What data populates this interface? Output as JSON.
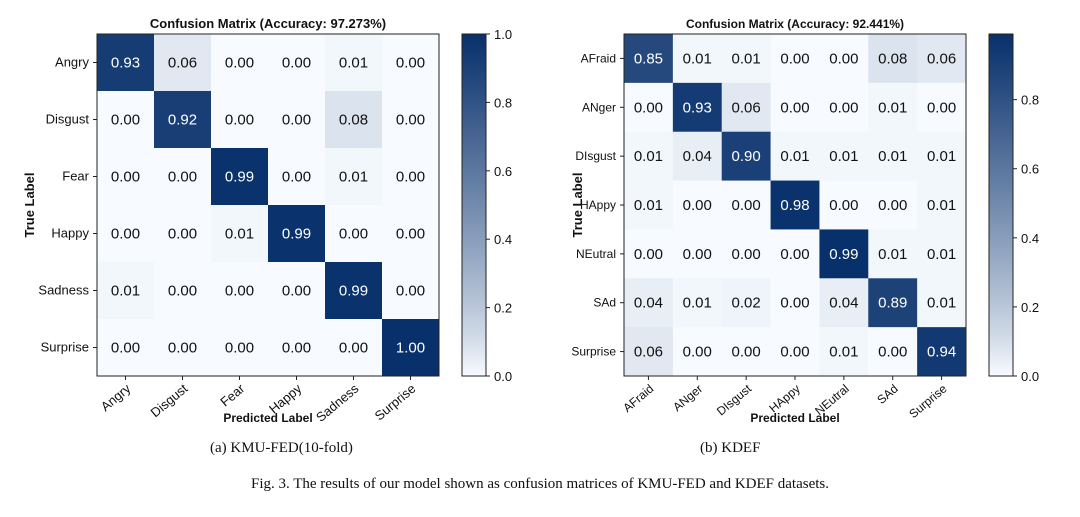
{
  "figure_caption": "Fig. 3.  The results of our model shown as confusion matrices of KMU-FED and KDEF datasets.",
  "chart_data": [
    {
      "type": "heatmap",
      "title": "Confusion Matrix (Accuracy: 97.273%)",
      "subcaption": "(a)  KMU-FED(10-fold)",
      "xlabel": "Predicted Label",
      "ylabel": "True Label",
      "row_labels": [
        "Angry",
        "Disgust",
        "Fear",
        "Happy",
        "Sadness",
        "Surprise"
      ],
      "col_labels": [
        "Angry",
        "Disgust",
        "Fear",
        "Happy",
        "Sadness",
        "Surprise"
      ],
      "values": [
        [
          0.93,
          0.06,
          0.0,
          0.0,
          0.01,
          0.0
        ],
        [
          0.0,
          0.92,
          0.0,
          0.0,
          0.08,
          0.0
        ],
        [
          0.0,
          0.0,
          0.99,
          0.0,
          0.01,
          0.0
        ],
        [
          0.0,
          0.0,
          0.01,
          0.99,
          0.0,
          0.0
        ],
        [
          0.01,
          0.0,
          0.0,
          0.0,
          0.99,
          0.0
        ],
        [
          0.0,
          0.0,
          0.0,
          0.0,
          0.0,
          1.0
        ]
      ],
      "colorbar_range": [
        0.0,
        1.0
      ],
      "colorbar_ticks": [
        "0.0",
        "0.2",
        "0.4",
        "0.6",
        "0.8",
        "1.0"
      ],
      "colormap": "Blues",
      "colors": {
        "low": "#f7fbff",
        "high": "#08306b"
      }
    },
    {
      "type": "heatmap",
      "title": "Confusion Matrix (Accuracy: 92.441%)",
      "subcaption": "(b)  KDEF",
      "xlabel": "Predicted Label",
      "ylabel": "True Label",
      "row_labels": [
        "AFraid",
        "ANger",
        "DIsgust",
        "HAppy",
        "NEutral",
        "SAd",
        "Surprise"
      ],
      "col_labels": [
        "AFraid",
        "ANger",
        "DIsgust",
        "HAppy",
        "NEutral",
        "SAd",
        "Surprise"
      ],
      "values": [
        [
          0.85,
          0.01,
          0.01,
          0.0,
          0.0,
          0.08,
          0.06
        ],
        [
          0.0,
          0.93,
          0.06,
          0.0,
          0.0,
          0.01,
          0.0
        ],
        [
          0.01,
          0.04,
          0.9,
          0.01,
          0.01,
          0.01,
          0.01
        ],
        [
          0.01,
          0.0,
          0.0,
          0.98,
          0.0,
          0.0,
          0.01
        ],
        [
          0.0,
          0.0,
          0.0,
          0.0,
          0.99,
          0.01,
          0.01
        ],
        [
          0.04,
          0.01,
          0.02,
          0.0,
          0.04,
          0.89,
          0.01
        ],
        [
          0.06,
          0.0,
          0.0,
          0.0,
          0.01,
          0.0,
          0.94
        ]
      ],
      "colorbar_range": [
        0.0,
        0.99
      ],
      "colorbar_ticks": [
        "0.0",
        "0.2",
        "0.4",
        "0.6",
        "0.8"
      ],
      "colormap": "Blues",
      "colors": {
        "low": "#f7fbff",
        "high": "#08306b"
      }
    }
  ]
}
